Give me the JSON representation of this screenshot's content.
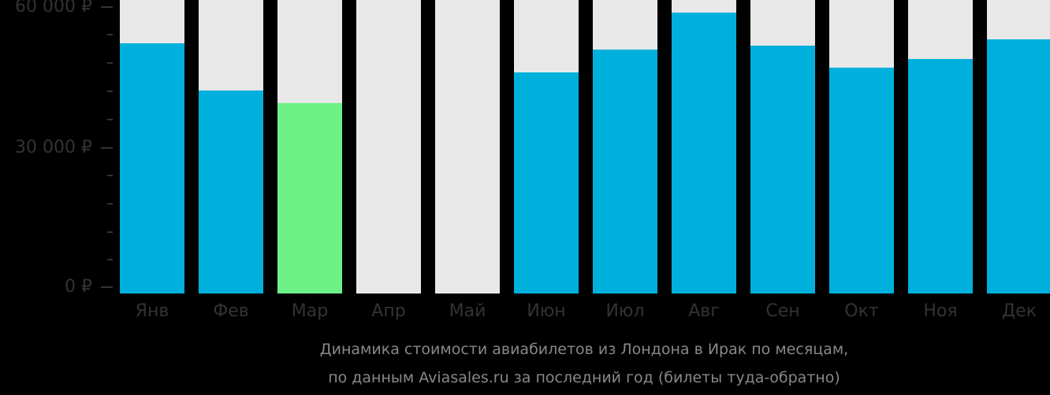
{
  "chart_data": {
    "type": "bar",
    "title": "Динамика стоимости авиабилетов из Лондона в Ирак по месяцам, по данным Aviasales.ru за последний год (билеты туда-обратно)",
    "xlabel": "",
    "ylabel": "",
    "categories": [
      "Янв",
      "Фев",
      "Мар",
      "Апр",
      "Май",
      "Июн",
      "Июл",
      "Авг",
      "Сен",
      "Окт",
      "Ноя",
      "Дек"
    ],
    "values": [
      52200,
      42100,
      39400,
      null,
      null,
      46000,
      50900,
      58800,
      51700,
      47000,
      48900,
      53100
    ],
    "highlighted_category": "Мар",
    "ylim": [
      0,
      60000
    ],
    "yticks": [
      0,
      30000,
      60000
    ],
    "ytick_labels": [
      "0 ₽",
      "30 000 ₽",
      "60 000 ₽"
    ],
    "minor_tick_step": 6000,
    "grid": false,
    "legend": null,
    "colors": {
      "bar": "#00b0dc",
      "highlight": "#6df288",
      "background_column": "#e8e8e8",
      "page_background": "#000000",
      "axis_text": "#333333",
      "caption_text": "#888888"
    }
  },
  "y_axis": {
    "labels": [
      "60 000 ₽",
      "30 000 ₽",
      "0 ₽"
    ]
  },
  "x_axis": {
    "labels": [
      "Янв",
      "Фев",
      "Мар",
      "Апр",
      "Май",
      "Июн",
      "Июл",
      "Авг",
      "Сен",
      "Окт",
      "Ноя",
      "Дек"
    ]
  },
  "caption": {
    "line1": "Динамика стоимости авиабилетов из Лондона в Ирак по месяцам,",
    "line2": "по данным Aviasales.ru за последний год (билеты туда-обратно)"
  }
}
